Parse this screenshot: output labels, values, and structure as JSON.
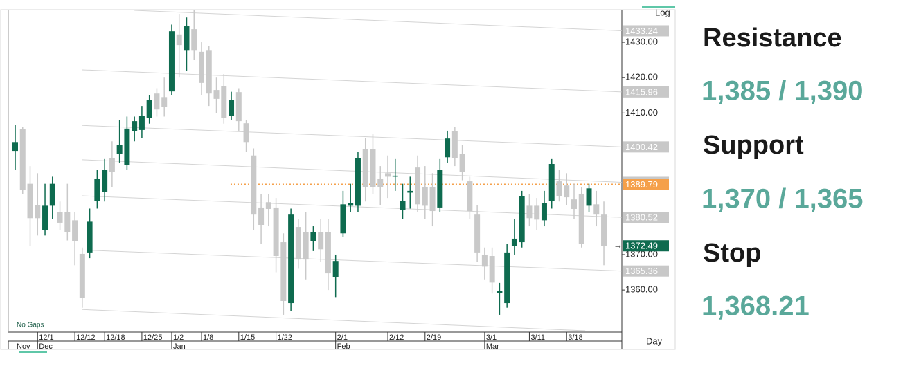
{
  "chart_data": {
    "type": "candlestick",
    "scale_label": "Log",
    "period_label": "Day",
    "gaps_label": "No Gaps",
    "categories": [
      null,
      null,
      null,
      "12/1",
      null,
      null,
      null,
      null,
      "12/12",
      null,
      null,
      null,
      "12/18",
      null,
      null,
      null,
      null,
      "12/25",
      null,
      null,
      null,
      "1/2",
      null,
      null,
      null,
      "1/8",
      null,
      null,
      null,
      null,
      "1/15",
      null,
      null,
      null,
      null,
      "1/22",
      null,
      null,
      null,
      null,
      null,
      null,
      null,
      "2/1",
      null,
      null,
      null,
      null,
      null,
      null,
      "2/12",
      null,
      null,
      null,
      null,
      "2/19",
      null,
      null,
      null,
      null,
      null,
      null,
      null,
      "3/1",
      null,
      null,
      null,
      null,
      null,
      "3/11",
      null,
      null,
      null,
      null,
      "3/18",
      null,
      null,
      null,
      null,
      null
    ],
    "months": [
      "Nov",
      null,
      null,
      "Dec",
      null,
      null,
      null,
      null,
      null,
      null,
      null,
      null,
      null,
      null,
      null,
      null,
      null,
      null,
      null,
      null,
      null,
      "Jan",
      null,
      null,
      null,
      null,
      null,
      null,
      null,
      null,
      null,
      null,
      null,
      null,
      null,
      null,
      null,
      null,
      null,
      null,
      null,
      null,
      null,
      "Feb",
      null,
      null,
      null,
      null,
      null,
      null,
      null,
      null,
      null,
      null,
      null,
      null,
      null,
      null,
      null,
      null,
      null,
      null,
      null,
      "Mar",
      null,
      null,
      null,
      null,
      null,
      null,
      null,
      null,
      null,
      null,
      null,
      null,
      null,
      null,
      null,
      null,
      null
    ],
    "open": [
      1399.3,
      1405.4,
      1390,
      1384,
      1377,
      1383.8,
      1382,
      1382,
      1379.7,
      1370.2,
      1370.6,
      1385.2,
      1387.6,
      1397.3,
      1398.5,
      1395.4,
      1404.8,
      1405.2,
      1408.7,
      1415.5,
      1414.5,
      1416.1,
      1432.2,
      1427.8,
      1433.7,
      1427.3,
      1427.8,
      1416.5,
      1417.5,
      1409.1,
      1415.9,
      1407.1,
      1398,
      1383.3,
      1384.8,
      1383.3,
      1373.5,
      1356.3,
      1377.8,
      1376.4,
      1373.9,
      1376.4,
      1376.4,
      1363.7,
      1376,
      1383.8,
      1383.8,
      1399.9,
      1399.9,
      1391.5,
      1393,
      1392,
      1382.6,
      1387.5,
      1394.6,
      1389.1,
      1389.1,
      1383.3,
      1397.5,
      1404.8,
      1398.5,
      1390.7,
      1381.3,
      1370,
      1369.6,
      1359.2,
      1356.3,
      1372.5,
      1373.5,
      1383.8,
      1383.8,
      1379.7,
      1385.2,
      1390.7,
      1389.5,
      1385.6,
      1387.2,
      1383.8,
      1384.2,
      1381.3
    ],
    "high": [
      1406.7,
      1406.1,
      1395,
      1393,
      1390,
      1392,
      1385,
      1390,
      1382,
      1372,
      1383,
      1394,
      1397,
      1402,
      1408,
      1409,
      1409,
      1412,
      1415,
      1417,
      1420,
      1435,
      1438,
      1437,
      1439,
      1430,
      1429,
      1420,
      1421,
      1416,
      1417,
      1408,
      1400,
      1387,
      1387,
      1386,
      1376,
      1383,
      1380,
      1382,
      1378,
      1380,
      1380,
      1370,
      1388,
      1390,
      1399,
      1403,
      1404,
      1395,
      1398,
      1397,
      1390,
      1392,
      1398,
      1395,
      1393,
      1397,
      1405,
      1406,
      1401,
      1392,
      1384,
      1372,
      1372,
      1362,
      1373,
      1380,
      1388,
      1387,
      1386,
      1388,
      1397,
      1394,
      1393,
      1390,
      1389,
      1390,
      1388,
      1385
    ],
    "low": [
      1394,
      1387.2,
      1372.5,
      1375.4,
      1375.4,
      1380,
      1377,
      1374,
      1367,
      1355,
      1369,
      1383,
      1385,
      1389,
      1396,
      1394,
      1402,
      1403,
      1407,
      1409,
      1409,
      1415,
      1420,
      1422,
      1425,
      1415,
      1412,
      1410,
      1407,
      1408,
      1405,
      1399,
      1377,
      1373,
      1378,
      1365,
      1353,
      1354,
      1366,
      1363,
      1371,
      1368,
      1360,
      1358,
      1375,
      1382,
      1382,
      1385,
      1387,
      1384,
      1386,
      1388,
      1380,
      1383,
      1382,
      1380,
      1378,
      1382,
      1396,
      1395,
      1391,
      1380,
      1368,
      1363,
      1359,
      1353,
      1355,
      1370,
      1372,
      1378,
      1377,
      1378,
      1383,
      1385,
      1384,
      1380,
      1372,
      1382,
      1378,
      1367
    ],
    "close": [
      1401.8,
      1388.2,
      1380.3,
      1380.3,
      1383.8,
      1390,
      1379,
      1376.4,
      1373.9,
      1357.8,
      1379.3,
      1391.5,
      1394,
      1393.4,
      1400.9,
      1405.6,
      1407.7,
      1409.1,
      1413.6,
      1411,
      1411.8,
      1433.1,
      1429.2,
      1434.5,
      1427.8,
      1418.5,
      1415.5,
      1414,
      1408.7,
      1413.6,
      1407.7,
      1401.8,
      1381.3,
      1378.4,
      1382.9,
      1369.6,
      1356.9,
      1381.3,
      1368.6,
      1368.6,
      1376.4,
      1371.5,
      1364.7,
      1368.2,
      1384.2,
      1384.6,
      1397.3,
      1389.1,
      1389.1,
      1389.1,
      1392,
      1392.3,
      1385.2,
      1388,
      1384.2,
      1383.8,
      1382.3,
      1394,
      1402.8,
      1397.3,
      1393.4,
      1382.3,
      1370.6,
      1366.6,
      1362.1,
      1359.8,
      1370.6,
      1374.5,
      1386.6,
      1380.3,
      1379.9,
      1384.6,
      1395.6,
      1386.6,
      1386.2,
      1382.9,
      1373.1,
      1388.7,
      1381.3,
      1372.49
    ],
    "up_color": "#0e6b4f",
    "down_color": "#c9c9c9",
    "ylim": [
      1348.1,
      1439
    ],
    "yticks": [
      {
        "value": 1360,
        "label": "1360.00"
      },
      {
        "value": 1370,
        "label": "1370.00"
      },
      {
        "value": 1410,
        "label": "1410.00"
      },
      {
        "value": 1420,
        "label": "1420.00"
      },
      {
        "value": 1430,
        "label": "1430.00"
      }
    ],
    "grid": false,
    "lines": [
      {
        "x": [
          16,
          81.4
        ],
        "y": [
          1439,
          1433.24
        ],
        "color": "#d4d4d4",
        "box": "#c8c8c8"
      },
      {
        "x": [
          9,
          81.4
        ],
        "y": [
          1422.2,
          1415.96
        ],
        "color": "#d4d4d4",
        "box": "#c8c8c8"
      },
      {
        "x": [
          9,
          81.4
        ],
        "y": [
          1406.5,
          1400.42
        ],
        "color": "#d4d4d4",
        "box": "#c8c8c8"
      },
      {
        "x": [
          9,
          81.4
        ],
        "y": [
          1396.8,
          1390.43
        ],
        "color": "#d4d4d4",
        "box": "#c8c8c8"
      },
      {
        "x": [
          28.9,
          81.4
        ],
        "y": [
          1389.79,
          1389.79
        ],
        "color": "#f5a04a",
        "dashed": true,
        "box": "#f5a04a"
      },
      {
        "x": [
          9,
          81.4
        ],
        "y": [
          1386.6,
          1380.52
        ],
        "color": "#d4d4d4",
        "box": "#c8c8c8"
      },
      {
        "y": [
          1372.49
        ],
        "box": "#0e6b4f"
      },
      {
        "x": [
          9,
          81.4
        ],
        "y": [
          1371.3,
          1365.36
        ],
        "color": "#d4d4d4",
        "box": "#c8c8c8"
      },
      {
        "x": [
          9,
          76.5
        ],
        "y": [
          1354.5,
          1348.5
        ],
        "color": "#d4d4d4"
      }
    ]
  },
  "panel": [
    {
      "heading": "Resistance",
      "value": "1,385 / 1,390"
    },
    {
      "heading": "Support",
      "value": "1,370 / 1,365"
    },
    {
      "heading": "Stop",
      "value": "1,368.21"
    }
  ]
}
